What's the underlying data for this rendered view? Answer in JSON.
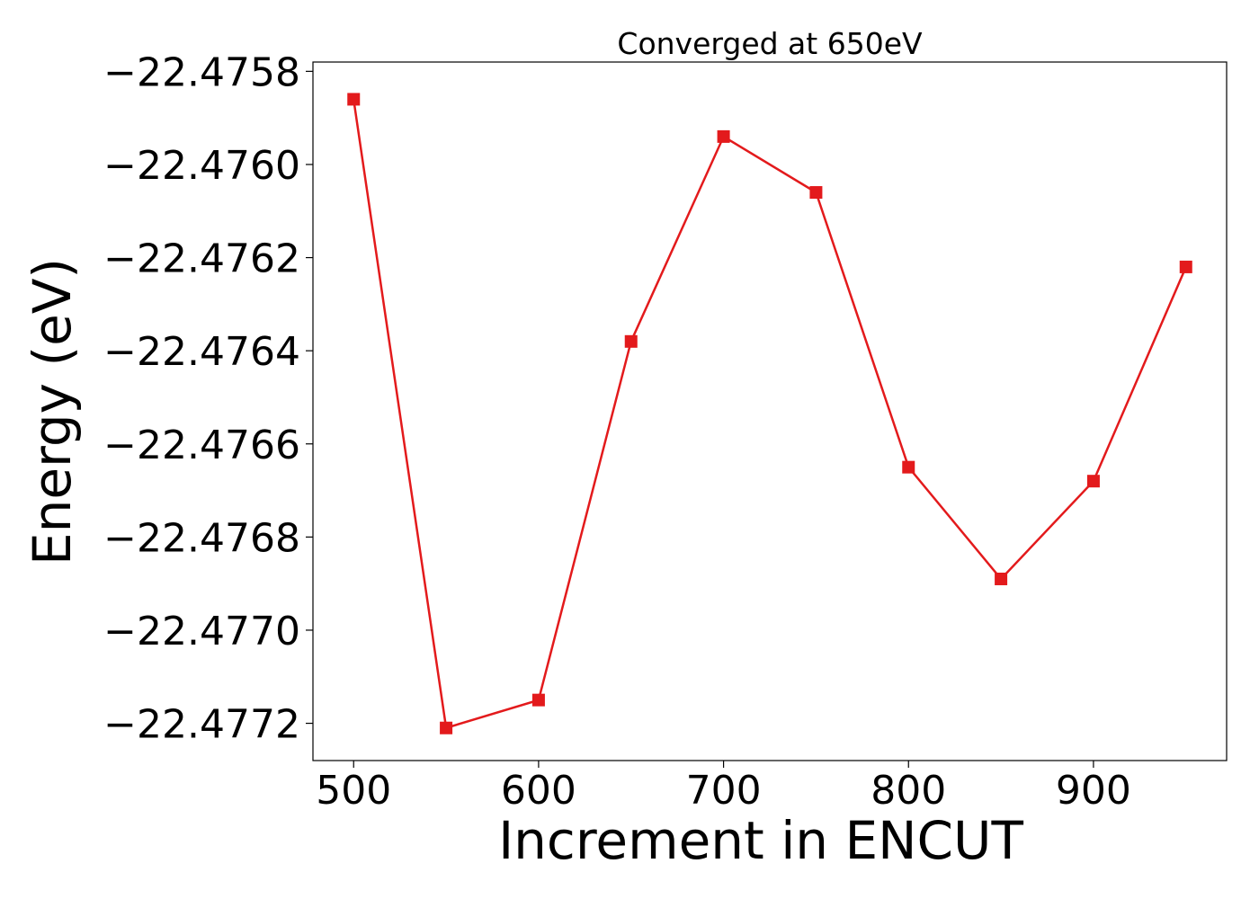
{
  "chart_data": {
    "type": "line",
    "title": "Converged at 650eV",
    "xlabel": "Increment in ENCUT",
    "ylabel": "Energy (eV)",
    "x": [
      500,
      550,
      600,
      650,
      700,
      750,
      800,
      850,
      900,
      950
    ],
    "xlim": [
      478,
      972
    ],
    "ylim": [
      -22.47728,
      -22.47578
    ],
    "xticks": [
      500,
      600,
      700,
      800,
      900
    ],
    "xtick_labels": [
      "500",
      "600",
      "700",
      "800",
      "900"
    ],
    "yticks": [
      -22.4758,
      -22.476,
      -22.4762,
      -22.4764,
      -22.4766,
      -22.4768,
      -22.477,
      -22.4772
    ],
    "ytick_labels": [
      "−22.4758",
      "−22.4760",
      "−22.4762",
      "−22.4764",
      "−22.4766",
      "−22.4768",
      "−22.4770",
      "−22.4772"
    ],
    "grid": false,
    "legend": "none",
    "series": [
      {
        "values": [
          -22.47586,
          -22.47721,
          -22.47715,
          -22.47638,
          -22.47594,
          -22.47606,
          -22.47665,
          -22.47689,
          -22.47668,
          -22.47622
        ],
        "color": "#e31a1c",
        "marker": "square"
      }
    ]
  }
}
